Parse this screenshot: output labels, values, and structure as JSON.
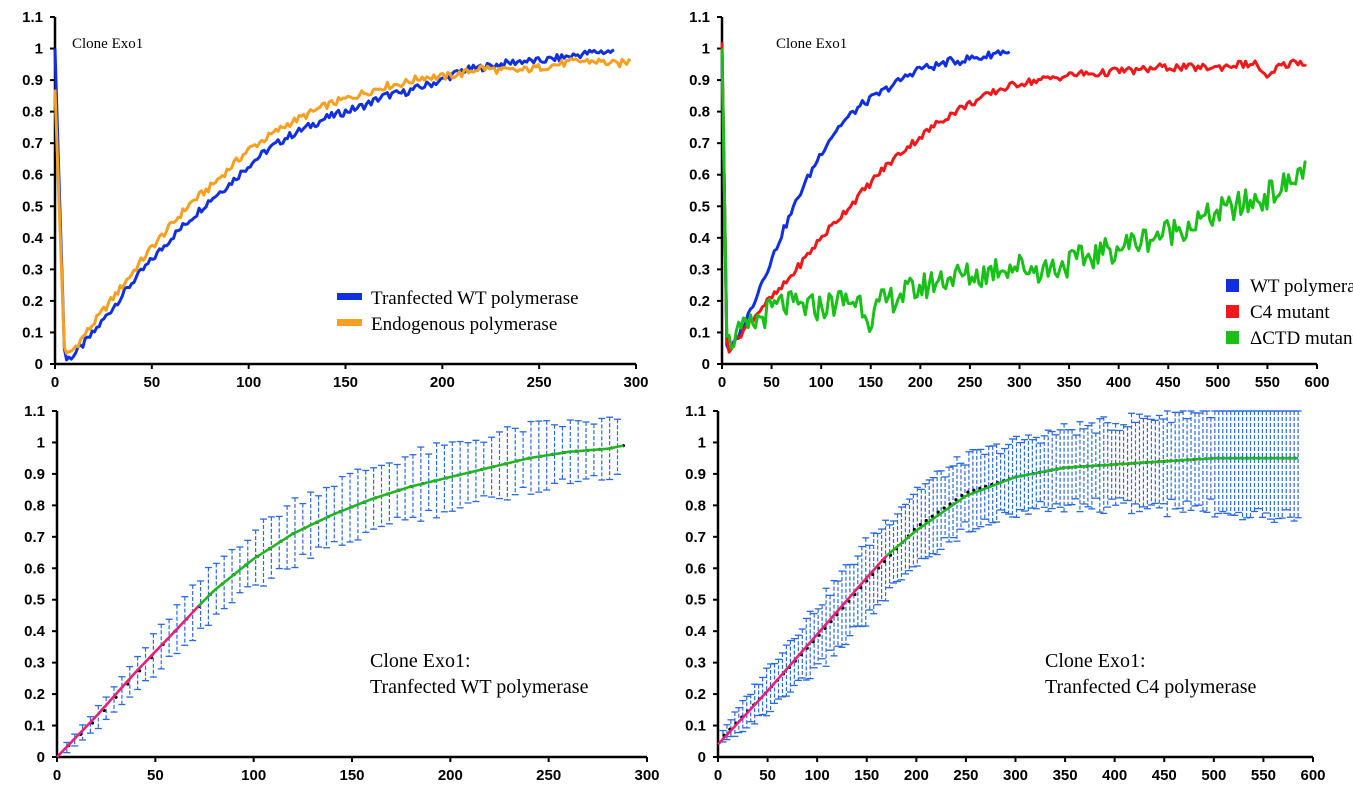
{
  "chart_data": [
    {
      "type": "line",
      "annotation": [
        "Clone Exo1"
      ],
      "xlim": [
        0,
        300
      ],
      "ylim": [
        0,
        1.1
      ],
      "xticks": [
        0,
        50,
        100,
        150,
        200,
        250,
        300
      ],
      "yticks": [
        0,
        0.1,
        0.2,
        0.3,
        0.4,
        0.5,
        0.6,
        0.7,
        0.8,
        0.9,
        1,
        1.1
      ],
      "legend_position": "bottom-right",
      "series": [
        {
          "name": "Tranfected WT polymerase",
          "color": "#1030e0",
          "x": [
            0,
            5,
            10,
            20,
            30,
            40,
            50,
            60,
            70,
            80,
            90,
            100,
            110,
            120,
            130,
            140,
            150,
            160,
            170,
            180,
            190,
            200,
            210,
            220,
            230,
            240,
            250,
            260,
            270,
            280,
            288
          ],
          "y": [
            1.0,
            0.01,
            0.03,
            0.1,
            0.18,
            0.26,
            0.33,
            0.4,
            0.46,
            0.52,
            0.57,
            0.63,
            0.68,
            0.72,
            0.75,
            0.78,
            0.8,
            0.82,
            0.85,
            0.86,
            0.88,
            0.9,
            0.93,
            0.94,
            0.95,
            0.96,
            0.96,
            0.97,
            0.98,
            0.99,
            0.99
          ]
        },
        {
          "name": "Endogenous polymerase",
          "color": "#f5a020",
          "x": [
            0,
            5,
            10,
            20,
            30,
            40,
            50,
            60,
            70,
            80,
            90,
            100,
            110,
            120,
            130,
            140,
            150,
            160,
            170,
            180,
            190,
            200,
            210,
            220,
            230,
            240,
            250,
            260,
            270,
            280,
            290,
            297
          ],
          "y": [
            0.87,
            0.02,
            0.05,
            0.13,
            0.21,
            0.29,
            0.37,
            0.44,
            0.51,
            0.56,
            0.62,
            0.68,
            0.72,
            0.76,
            0.79,
            0.82,
            0.84,
            0.86,
            0.88,
            0.89,
            0.91,
            0.91,
            0.92,
            0.94,
            0.93,
            0.93,
            0.94,
            0.95,
            0.96,
            0.96,
            0.95,
            0.96
          ]
        }
      ]
    },
    {
      "type": "line",
      "annotation": [
        "Clone Exo1"
      ],
      "xlim": [
        0,
        600
      ],
      "ylim": [
        0,
        1.1
      ],
      "xticks": [
        0,
        50,
        100,
        150,
        200,
        250,
        300,
        350,
        400,
        450,
        500,
        550,
        600
      ],
      "yticks": [
        0,
        0.1,
        0.2,
        0.3,
        0.4,
        0.5,
        0.6,
        0.7,
        0.8,
        0.9,
        1,
        1.1
      ],
      "legend_position": "bottom-right",
      "series": [
        {
          "name": "WT polymerase",
          "color": "#1030e0",
          "x": [
            0,
            5,
            10,
            20,
            30,
            40,
            50,
            60,
            70,
            80,
            90,
            100,
            110,
            120,
            130,
            140,
            150,
            160,
            170,
            180,
            190,
            200,
            210,
            220,
            230,
            240,
            250,
            260,
            270,
            280,
            290
          ],
          "y": [
            1.0,
            0.02,
            0.05,
            0.11,
            0.18,
            0.26,
            0.33,
            0.41,
            0.48,
            0.55,
            0.61,
            0.67,
            0.72,
            0.76,
            0.79,
            0.82,
            0.84,
            0.86,
            0.88,
            0.9,
            0.92,
            0.94,
            0.94,
            0.95,
            0.96,
            0.96,
            0.97,
            0.97,
            0.98,
            0.99,
            0.99
          ]
        },
        {
          "name": "C4 mutant",
          "color": "#f01818",
          "x": [
            0,
            5,
            10,
            20,
            30,
            40,
            50,
            60,
            80,
            100,
            120,
            140,
            160,
            180,
            200,
            220,
            240,
            260,
            280,
            300,
            320,
            340,
            360,
            380,
            400,
            420,
            440,
            460,
            480,
            500,
            520,
            540,
            550,
            560,
            570,
            580,
            588
          ],
          "y": [
            1.02,
            0.04,
            0.06,
            0.1,
            0.14,
            0.18,
            0.21,
            0.24,
            0.32,
            0.4,
            0.47,
            0.54,
            0.61,
            0.67,
            0.72,
            0.77,
            0.81,
            0.84,
            0.87,
            0.89,
            0.9,
            0.91,
            0.92,
            0.92,
            0.93,
            0.93,
            0.94,
            0.94,
            0.94,
            0.94,
            0.95,
            0.95,
            0.9,
            0.94,
            0.95,
            0.96,
            0.95
          ]
        },
        {
          "name": "ΔCTD mutant",
          "color": "#18c018",
          "x": [
            0,
            5,
            10,
            20,
            30,
            40,
            50,
            60,
            80,
            100,
            120,
            140,
            150,
            160,
            180,
            200,
            220,
            240,
            260,
            280,
            300,
            320,
            340,
            360,
            380,
            400,
            420,
            440,
            460,
            480,
            500,
            520,
            540,
            560,
            580,
            588
          ],
          "y": [
            1.0,
            0.05,
            0.08,
            0.1,
            0.12,
            0.15,
            0.17,
            0.19,
            0.18,
            0.18,
            0.2,
            0.2,
            0.14,
            0.19,
            0.22,
            0.24,
            0.27,
            0.28,
            0.28,
            0.31,
            0.31,
            0.3,
            0.31,
            0.33,
            0.35,
            0.37,
            0.39,
            0.41,
            0.43,
            0.45,
            0.48,
            0.5,
            0.52,
            0.55,
            0.59,
            0.64
          ]
        }
      ]
    },
    {
      "type": "line",
      "annotation": [
        "Clone Exo1:",
        "Tranfected WT polymerase"
      ],
      "xlim": [
        0,
        300
      ],
      "ylim": [
        0,
        1.1
      ],
      "xticks": [
        0,
        50,
        100,
        150,
        200,
        250,
        300
      ],
      "yticks": [
        0,
        0.1,
        0.2,
        0.3,
        0.4,
        0.5,
        0.6,
        0.7,
        0.8,
        0.9,
        1,
        1.1
      ],
      "error_bars": {
        "color": "#2a6adb",
        "x_start": 5,
        "x_end": 288,
        "x_step": 4,
        "x": [
          5,
          20,
          40,
          60,
          80,
          100,
          120,
          140,
          160,
          180,
          200,
          220,
          240,
          260,
          280,
          288
        ],
        "half_width": [
          0.02,
          0.03,
          0.05,
          0.07,
          0.08,
          0.09,
          0.1,
          0.1,
          0.1,
          0.1,
          0.1,
          0.1,
          0.1,
          0.09,
          0.09,
          0.08
        ]
      },
      "series": [
        {
          "name": "",
          "color": "#000000",
          "style": "markers",
          "x": [
            0,
            20,
            40,
            60,
            80,
            100,
            120,
            140,
            160,
            180,
            200,
            220,
            240,
            260,
            280,
            288
          ],
          "y": [
            0.0,
            0.12,
            0.26,
            0.4,
            0.53,
            0.63,
            0.71,
            0.77,
            0.82,
            0.86,
            0.89,
            0.92,
            0.95,
            0.97,
            0.98,
            0.99
          ]
        },
        {
          "name": "",
          "color": "#e8207a",
          "x": [
            0,
            20,
            40,
            60,
            72
          ],
          "y": [
            0.0,
            0.13,
            0.27,
            0.4,
            0.48
          ]
        },
        {
          "name": "",
          "color": "#22b522",
          "x": [
            72,
            80,
            100,
            120,
            140,
            160,
            180,
            200,
            220,
            240,
            260,
            280,
            288
          ],
          "y": [
            0.48,
            0.53,
            0.63,
            0.71,
            0.77,
            0.82,
            0.86,
            0.89,
            0.92,
            0.95,
            0.97,
            0.98,
            0.99
          ]
        }
      ]
    },
    {
      "type": "line",
      "annotation": [
        "Clone Exo1:",
        "Tranfected C4 polymerase"
      ],
      "xlim": [
        0,
        600
      ],
      "ylim": [
        0,
        1.1
      ],
      "xticks": [
        0,
        50,
        100,
        150,
        200,
        250,
        300,
        350,
        400,
        450,
        500,
        550,
        600
      ],
      "yticks": [
        0,
        0.1,
        0.2,
        0.3,
        0.4,
        0.5,
        0.6,
        0.7,
        0.8,
        0.9,
        1,
        1.1
      ],
      "error_bars": {
        "color": "#2a6adb",
        "x_start": 5,
        "x_end": 585,
        "x_step": 4,
        "x": [
          5,
          50,
          100,
          150,
          200,
          250,
          300,
          350,
          400,
          450,
          500,
          550,
          585
        ],
        "half_width": [
          0.02,
          0.07,
          0.1,
          0.12,
          0.12,
          0.11,
          0.11,
          0.12,
          0.13,
          0.15,
          0.16,
          0.17,
          0.18
        ]
      },
      "series": [
        {
          "name": "",
          "color": "#000000",
          "style": "markers",
          "x": [
            0,
            50,
            100,
            150,
            200,
            250,
            300,
            350,
            400,
            450,
            500,
            550,
            585
          ],
          "y": [
            0.05,
            0.21,
            0.38,
            0.56,
            0.73,
            0.84,
            0.89,
            0.92,
            0.93,
            0.94,
            0.95,
            0.95,
            0.95
          ]
        },
        {
          "name": "",
          "color": "#e8207a",
          "x": [
            0,
            50,
            100,
            150,
            170
          ],
          "y": [
            0.04,
            0.21,
            0.39,
            0.57,
            0.64
          ]
        },
        {
          "name": "",
          "color": "#22b522",
          "x": [
            170,
            200,
            250,
            300,
            350,
            400,
            450,
            500,
            550,
            585
          ],
          "y": [
            0.64,
            0.72,
            0.83,
            0.89,
            0.92,
            0.93,
            0.94,
            0.95,
            0.95,
            0.95
          ]
        }
      ]
    }
  ]
}
